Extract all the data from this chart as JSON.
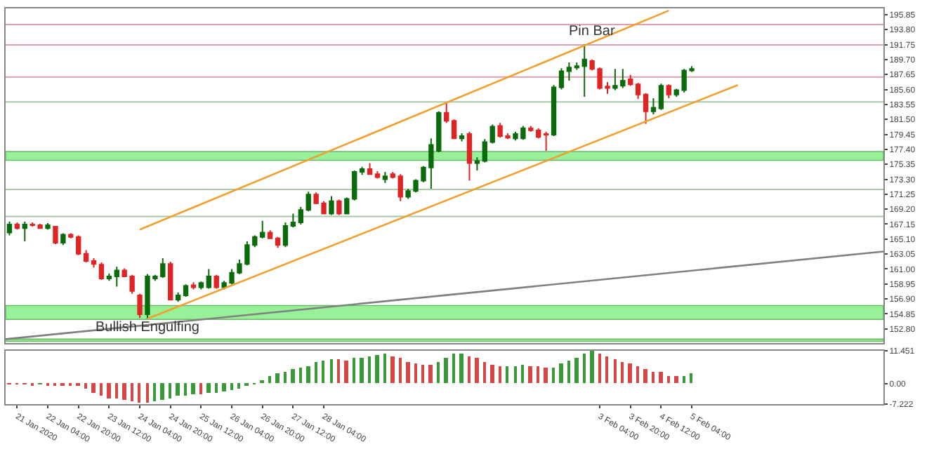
{
  "chart_data": [
    {
      "type": "candlestick",
      "x": [
        "2020-01-21T08:00",
        "2020-01-21T12:00",
        "2020-01-21T16:00",
        "2020-01-21T20:00",
        "2020-01-22T00:00",
        "2020-01-22T04:00",
        "2020-01-22T08:00",
        "2020-01-22T12:00",
        "2020-01-22T16:00",
        "2020-01-22T20:00",
        "2020-01-23T00:00",
        "2020-01-23T04:00",
        "2020-01-23T08:00",
        "2020-01-23T12:00",
        "2020-01-23T16:00",
        "2020-01-23T20:00",
        "2020-01-24T00:00",
        "2020-01-24T04:00",
        "2020-01-24T08:00",
        "2020-01-24T12:00",
        "2020-01-24T16:00",
        "2020-01-24T20:00",
        "2020-01-25T00:00",
        "2020-01-25T04:00",
        "2020-01-25T08:00",
        "2020-01-25T12:00",
        "2020-01-25T16:00",
        "2020-01-25T20:00",
        "2020-01-26T00:00",
        "2020-01-26T04:00",
        "2020-01-26T08:00",
        "2020-01-26T12:00",
        "2020-01-26T16:00",
        "2020-01-26T20:00",
        "2020-01-27T00:00",
        "2020-01-27T04:00",
        "2020-01-27T08:00",
        "2020-01-27T12:00",
        "2020-01-27T16:00",
        "2020-01-27T20:00",
        "2020-01-28T00:00",
        "2020-01-28T04:00",
        "2020-01-28T08:00",
        "2020-01-28T12:00",
        "2020-01-28T16:00",
        "2020-01-28T20:00",
        "2020-01-29T00:00",
        "2020-01-29T04:00",
        "2020-01-29T08:00",
        "2020-01-29T12:00",
        "2020-01-29T16:00",
        "2020-01-29T20:00",
        "2020-01-30T00:00",
        "2020-01-30T04:00",
        "2020-01-30T08:00",
        "2020-01-30T12:00",
        "2020-01-30T16:00",
        "2020-01-30T20:00",
        "2020-01-31T00:00",
        "2020-01-31T04:00",
        "2020-01-31T08:00",
        "2020-01-31T12:00",
        "2020-01-31T16:00",
        "2020-01-31T20:00",
        "2020-02-01T00:00",
        "2020-02-01T04:00",
        "2020-02-01T08:00",
        "2020-02-01T12:00",
        "2020-02-01T16:00",
        "2020-02-01T20:00",
        "2020-02-02T00:00",
        "2020-02-02T04:00",
        "2020-02-02T08:00",
        "2020-02-02T12:00",
        "2020-02-02T16:00",
        "2020-02-02T20:00",
        "2020-02-03T00:00",
        "2020-02-03T04:00",
        "2020-02-03T08:00",
        "2020-02-03T12:00",
        "2020-02-03T16:00",
        "2020-02-03T20:00",
        "2020-02-04T00:00",
        "2020-02-04T04:00",
        "2020-02-04T08:00",
        "2020-02-04T12:00",
        "2020-02-04T16:00",
        "2020-02-04T20:00",
        "2020-02-05T00:00",
        "2020-02-05T04:00"
      ],
      "ohlc": [
        [
          166.0,
          167.5,
          165.6,
          167.1
        ],
        [
          167.1,
          167.4,
          166.4,
          166.6
        ],
        [
          166.6,
          167.5,
          164.8,
          167.1
        ],
        [
          167.1,
          167.4,
          166.8,
          167.0
        ],
        [
          167.0,
          167.2,
          166.5,
          166.6
        ],
        [
          166.6,
          167.3,
          166.4,
          167.0
        ],
        [
          166.8,
          166.9,
          164.4,
          164.6
        ],
        [
          164.6,
          165.9,
          164.3,
          165.7
        ],
        [
          165.7,
          165.9,
          165.2,
          165.4
        ],
        [
          165.4,
          165.6,
          162.9,
          163.1
        ],
        [
          163.1,
          163.6,
          161.9,
          162.1
        ],
        [
          162.1,
          162.5,
          161.2,
          161.7
        ],
        [
          161.6,
          161.9,
          159.5,
          159.7
        ],
        [
          159.7,
          160.4,
          159.4,
          160.0
        ],
        [
          160.0,
          161.3,
          158.6,
          160.8
        ],
        [
          160.8,
          161.1,
          159.9,
          160.0
        ],
        [
          160.0,
          160.2,
          157.6,
          158.0
        ],
        [
          157.4,
          157.6,
          154.3,
          154.8
        ],
        [
          154.8,
          160.3,
          154.2,
          160.0
        ],
        [
          159.7,
          160.2,
          159.4,
          160.0
        ],
        [
          160.0,
          162.5,
          159.8,
          161.7
        ],
        [
          161.7,
          162.0,
          156.7,
          156.8
        ],
        [
          156.8,
          157.8,
          156.5,
          157.4
        ],
        [
          157.4,
          158.9,
          157.2,
          158.7
        ],
        [
          158.8,
          159.2,
          158.2,
          158.5
        ],
        [
          158.5,
          159.3,
          158.2,
          159.1
        ],
        [
          158.5,
          161.0,
          158.3,
          160.0
        ],
        [
          160.0,
          160.2,
          158.3,
          158.5
        ],
        [
          158.5,
          159.4,
          158.2,
          159.1
        ],
        [
          159.1,
          161.0,
          158.9,
          160.5
        ],
        [
          160.5,
          162.3,
          160.3,
          161.7
        ],
        [
          161.7,
          164.8,
          161.5,
          164.3
        ],
        [
          164.3,
          165.6,
          164.0,
          165.4
        ],
        [
          165.4,
          167.6,
          165.2,
          166.0
        ],
        [
          166.0,
          166.3,
          165.1,
          165.2
        ],
        [
          165.2,
          165.4,
          163.9,
          164.3
        ],
        [
          164.3,
          167.4,
          164.0,
          166.9
        ],
        [
          166.9,
          168.6,
          166.7,
          167.4
        ],
        [
          167.4,
          169.5,
          167.1,
          169.1
        ],
        [
          169.1,
          171.6,
          168.9,
          171.2
        ],
        [
          171.2,
          171.5,
          169.9,
          170.0
        ],
        [
          170.0,
          170.3,
          168.5,
          168.6
        ],
        [
          168.6,
          171.0,
          168.4,
          170.3
        ],
        [
          170.3,
          170.5,
          168.4,
          168.6
        ],
        [
          168.6,
          170.8,
          168.5,
          170.6
        ],
        [
          170.6,
          174.5,
          170.4,
          174.3
        ],
        [
          174.3,
          175.0,
          173.9,
          174.7
        ],
        [
          174.7,
          175.5,
          173.9,
          174.0
        ],
        [
          174.0,
          174.4,
          173.4,
          173.6
        ],
        [
          173.3,
          174.3,
          172.8,
          173.7
        ],
        [
          174.0,
          174.3,
          173.4,
          173.6
        ],
        [
          173.7,
          174.0,
          170.3,
          170.9
        ],
        [
          170.9,
          172.0,
          170.6,
          171.7
        ],
        [
          171.7,
          173.3,
          171.5,
          173.1
        ],
        [
          173.1,
          175.1,
          172.9,
          174.9
        ],
        [
          174.9,
          178.9,
          172.0,
          178.0
        ],
        [
          177.2,
          182.6,
          177.0,
          182.4
        ],
        [
          182.4,
          183.8,
          181.0,
          181.3
        ],
        [
          181.3,
          181.5,
          178.8,
          178.9
        ],
        [
          178.9,
          179.6,
          178.5,
          179.2
        ],
        [
          179.5,
          179.8,
          173.1,
          175.5
        ],
        [
          175.5,
          176.3,
          174.5,
          175.8
        ],
        [
          175.8,
          178.8,
          175.6,
          178.4
        ],
        [
          178.4,
          180.8,
          178.2,
          180.5
        ],
        [
          180.6,
          181.0,
          179.0,
          179.2
        ],
        [
          179.2,
          179.6,
          178.8,
          179.0
        ],
        [
          178.9,
          179.8,
          178.6,
          179.5
        ],
        [
          178.9,
          180.6,
          178.7,
          180.3
        ],
        [
          180.3,
          180.6,
          179.8,
          180.0
        ],
        [
          180.0,
          180.3,
          178.9,
          179.1
        ],
        [
          179.5,
          179.8,
          177.2,
          179.4
        ],
        [
          179.4,
          186.2,
          179.2,
          185.9
        ],
        [
          185.9,
          188.5,
          185.6,
          188.1
        ],
        [
          188.1,
          189.3,
          186.8,
          188.6
        ],
        [
          188.6,
          189.3,
          188.3,
          188.8
        ],
        [
          188.8,
          191.8,
          184.6,
          189.7
        ],
        [
          189.5,
          189.7,
          188.2,
          188.4
        ],
        [
          188.4,
          188.6,
          185.6,
          185.8
        ],
        [
          186.0,
          186.6,
          185.0,
          185.8
        ],
        [
          185.8,
          188.4,
          185.5,
          186.1
        ],
        [
          186.1,
          188.4,
          185.8,
          186.8
        ],
        [
          187.0,
          187.6,
          186.1,
          186.3
        ],
        [
          186.3,
          186.5,
          184.3,
          184.9
        ],
        [
          184.9,
          185.1,
          180.9,
          182.6
        ],
        [
          182.6,
          184.4,
          182.2,
          183.1
        ],
        [
          183.0,
          186.4,
          182.8,
          186.1
        ],
        [
          186.1,
          186.3,
          184.4,
          184.9
        ],
        [
          184.9,
          185.7,
          184.6,
          185.5
        ],
        [
          185.5,
          188.4,
          185.2,
          188.2
        ],
        [
          188.2,
          188.8,
          188.0,
          188.4
        ]
      ],
      "colors": [
        "#0b6b0b",
        "#e02424",
        "#0b6b0b",
        "#e02424",
        "#e02424",
        "#0b6b0b",
        "#e02424",
        "#0b6b0b",
        "#e02424",
        "#e02424",
        "#e02424",
        "#e02424",
        "#e02424",
        "#0b6b0b",
        "#0b6b0b",
        "#e02424",
        "#e02424",
        "#e02424",
        "#0b6b0b",
        "#0b6b0b",
        "#0b6b0b",
        "#e02424",
        "#0b6b0b",
        "#0b6b0b",
        "#e02424",
        "#0b6b0b",
        "#0b6b0b",
        "#e02424",
        "#0b6b0b",
        "#0b6b0b",
        "#0b6b0b",
        "#0b6b0b",
        "#0b6b0b",
        "#0b6b0b",
        "#e02424",
        "#e02424",
        "#0b6b0b",
        "#0b6b0b",
        "#0b6b0b",
        "#0b6b0b",
        "#e02424",
        "#e02424",
        "#0b6b0b",
        "#e02424",
        "#0b6b0b",
        "#0b6b0b",
        "#0b6b0b",
        "#e02424",
        "#e02424",
        "#0b6b0b",
        "#e02424",
        "#e02424",
        "#0b6b0b",
        "#0b6b0b",
        "#0b6b0b",
        "#0b6b0b",
        "#0b6b0b",
        "#e02424",
        "#e02424",
        "#0b6b0b",
        "#e02424",
        "#0b6b0b",
        "#0b6b0b",
        "#0b6b0b",
        "#e02424",
        "#e02424",
        "#0b6b0b",
        "#0b6b0b",
        "#e02424",
        "#e02424",
        "#e02424",
        "#0b6b0b",
        "#0b6b0b",
        "#0b6b0b",
        "#0b6b0b",
        "#0b6b0b",
        "#e02424",
        "#e02424",
        "#e02424",
        "#0b6b0b",
        "#0b6b0b",
        "#e02424",
        "#e02424",
        "#e02424",
        "#0b6b0b",
        "#0b6b0b",
        "#e02424",
        "#0b6b0b",
        "#0b6b0b",
        "#0b6b0b"
      ],
      "series": [
        {
          "type": "line",
          "color": "#f0a030",
          "x": [
            "2020-01-24T04:00",
            "2020-02-04T16:00"
          ],
          "values": [
            166.4,
            196.4
          ]
        },
        {
          "type": "line",
          "color": "#f0a030",
          "x": [
            "2020-01-24T08:00",
            "2020-02-06T04:00"
          ],
          "values": [
            154.2,
            186.2
          ]
        },
        {
          "type": "line",
          "color": "#808080",
          "x": [
            "2020-01-21T06:00",
            "2020-02-09T08:00"
          ],
          "values": [
            151.4,
            163.4
          ]
        }
      ],
      "ref_lines": [
        {
          "axis": "y",
          "value": 194.5,
          "color": "#e0a0b0"
        },
        {
          "axis": "y",
          "value": 191.7,
          "color": "#e0a0b0"
        },
        {
          "axis": "y",
          "value": 187.3,
          "color": "#e0a0b0"
        },
        {
          "axis": "y",
          "value": 183.9,
          "color": "#a8c8a8"
        },
        {
          "axis": "y",
          "value": 171.9,
          "color": "#a8c8a8"
        },
        {
          "axis": "y",
          "value": 168.2,
          "color": "#a8c8a8"
        }
      ],
      "bands": [
        {
          "axis": "y",
          "from": 175.9,
          "to": 177.1,
          "color": "#98f098"
        },
        {
          "axis": "y",
          "from": 154.1,
          "to": 156.0,
          "color": "#98f098"
        },
        {
          "axis": "y",
          "from": 151.1,
          "to": 151.4,
          "color": "#98f098"
        }
      ],
      "annotations": [
        {
          "text": "Pin Bar",
          "x": "2020-02-03T00:00",
          "y": 193.6
        },
        {
          "text": "Bullish Engulfing",
          "x": "2020-01-24T08:00",
          "y": 153.0
        }
      ],
      "xlim": [
        "2020-01-21T06:00",
        "2020-02-09T08:00"
      ],
      "ylim": [
        150.9,
        196.7
      ],
      "yticks": [
        {
          "value": 152.8,
          "label": "152.80"
        },
        {
          "value": 154.85,
          "label": "154.85"
        },
        {
          "value": 156.9,
          "label": "156.90"
        },
        {
          "value": 158.95,
          "label": "158.95"
        },
        {
          "value": 161.0,
          "label": "161.00"
        },
        {
          "value": 163.05,
          "label": "163.05"
        },
        {
          "value": 165.1,
          "label": "165.10"
        },
        {
          "value": 167.15,
          "label": "167.15"
        },
        {
          "value": 169.2,
          "label": "169.20"
        },
        {
          "value": 171.25,
          "label": "171.25"
        },
        {
          "value": 173.3,
          "label": "173.30"
        },
        {
          "value": 175.35,
          "label": "175.35"
        },
        {
          "value": 177.4,
          "label": "177.40"
        },
        {
          "value": 179.45,
          "label": "179.45"
        },
        {
          "value": 181.5,
          "label": "181.50"
        },
        {
          "value": 183.55,
          "label": "183.55"
        },
        {
          "value": 185.6,
          "label": "185.60"
        },
        {
          "value": 187.65,
          "label": "187.65"
        },
        {
          "value": 189.7,
          "label": "189.70"
        },
        {
          "value": 191.75,
          "label": "191.75"
        },
        {
          "value": 193.8,
          "label": "193.80"
        },
        {
          "value": 195.85,
          "label": "195.85"
        }
      ],
      "tick_labels": "y"
    },
    {
      "type": "bar",
      "x": [
        "2020-01-21T08:00",
        "2020-01-21T12:00",
        "2020-01-21T16:00",
        "2020-01-21T20:00",
        "2020-01-22T00:00",
        "2020-01-22T04:00",
        "2020-01-22T08:00",
        "2020-01-22T12:00",
        "2020-01-22T16:00",
        "2020-01-22T20:00",
        "2020-01-23T00:00",
        "2020-01-23T04:00",
        "2020-01-23T08:00",
        "2020-01-23T12:00",
        "2020-01-23T16:00",
        "2020-01-23T20:00",
        "2020-01-24T00:00",
        "2020-01-24T04:00",
        "2020-01-24T08:00",
        "2020-01-24T12:00",
        "2020-01-24T16:00",
        "2020-01-24T20:00",
        "2020-01-25T00:00",
        "2020-01-25T04:00",
        "2020-01-25T08:00",
        "2020-01-25T12:00",
        "2020-01-25T16:00",
        "2020-01-25T20:00",
        "2020-01-26T00:00",
        "2020-01-26T04:00",
        "2020-01-26T08:00",
        "2020-01-26T12:00",
        "2020-01-26T16:00",
        "2020-01-26T20:00",
        "2020-01-27T00:00",
        "2020-01-27T04:00",
        "2020-01-27T08:00",
        "2020-01-27T12:00",
        "2020-01-27T16:00",
        "2020-01-27T20:00",
        "2020-01-28T00:00",
        "2020-01-28T04:00",
        "2020-01-28T08:00",
        "2020-01-28T12:00",
        "2020-01-28T16:00",
        "2020-01-28T20:00",
        "2020-01-29T00:00",
        "2020-01-29T04:00",
        "2020-01-29T08:00",
        "2020-01-29T12:00",
        "2020-01-29T16:00",
        "2020-01-29T20:00",
        "2020-01-30T00:00",
        "2020-01-30T04:00",
        "2020-01-30T08:00",
        "2020-01-30T12:00",
        "2020-01-30T16:00",
        "2020-01-30T20:00",
        "2020-01-31T00:00",
        "2020-01-31T04:00",
        "2020-01-31T08:00",
        "2020-01-31T12:00",
        "2020-01-31T16:00",
        "2020-01-31T20:00",
        "2020-02-01T00:00",
        "2020-02-01T04:00",
        "2020-02-01T08:00",
        "2020-02-01T12:00",
        "2020-02-01T16:00",
        "2020-02-01T20:00",
        "2020-02-02T00:00",
        "2020-02-02T04:00",
        "2020-02-02T08:00",
        "2020-02-02T12:00",
        "2020-02-02T16:00",
        "2020-02-02T20:00",
        "2020-02-03T00:00",
        "2020-02-03T04:00",
        "2020-02-03T08:00",
        "2020-02-03T12:00",
        "2020-02-03T16:00",
        "2020-02-03T20:00",
        "2020-02-04T00:00",
        "2020-02-04T04:00",
        "2020-02-04T08:00",
        "2020-02-04T12:00",
        "2020-02-04T16:00",
        "2020-02-04T20:00",
        "2020-02-05T00:00",
        "2020-02-05T04:00"
      ],
      "values": [
        -0.2,
        -0.3,
        -0.3,
        -0.4,
        -0.3,
        -0.4,
        -0.5,
        -0.5,
        -0.6,
        -0.8,
        -1.9,
        -3.2,
        -4.2,
        -5.0,
        -5.3,
        -5.7,
        -6.2,
        -6.5,
        -6.8,
        -6.2,
        -5.7,
        -5.0,
        -4.4,
        -4.2,
        -3.8,
        -3.9,
        -3.5,
        -3.2,
        -2.7,
        -2.3,
        -1.7,
        -0.5,
        0.1,
        1.3,
        2.5,
        3.7,
        4.3,
        5.1,
        5.5,
        6.2,
        7.3,
        8.0,
        8.5,
        8.4,
        8.2,
        8.8,
        9.2,
        9.7,
        10.0,
        10.4,
        9.7,
        9.2,
        7.7,
        7.0,
        6.5,
        6.4,
        7.7,
        9.2,
        10.3,
        10.4,
        9.7,
        8.8,
        7.3,
        6.5,
        6.2,
        6.3,
        6.3,
        6.4,
        6.2,
        5.9,
        5.5,
        5.8,
        7.0,
        8.2,
        9.2,
        10.7,
        11.4,
        10.3,
        9.5,
        8.5,
        7.3,
        7.0,
        6.2,
        5.2,
        4.3,
        4.0,
        2.8,
        2.5,
        2.6,
        3.6
      ],
      "colors": [
        "#d44848",
        "#d44848",
        "#d44848",
        "#d44848",
        "#3a9a3a",
        "#d44848",
        "#d44848",
        "#d44848",
        "#d44848",
        "#d44848",
        "#d44848",
        "#d44848",
        "#d44848",
        "#d44848",
        "#d44848",
        "#d44848",
        "#d44848",
        "#d44848",
        "#d44848",
        "#3a9a3a",
        "#3a9a3a",
        "#3a9a3a",
        "#3a9a3a",
        "#3a9a3a",
        "#3a9a3a",
        "#d44848",
        "#3a9a3a",
        "#3a9a3a",
        "#3a9a3a",
        "#3a9a3a",
        "#3a9a3a",
        "#3a9a3a",
        "#3a9a3a",
        "#3a9a3a",
        "#3a9a3a",
        "#3a9a3a",
        "#3a9a3a",
        "#3a9a3a",
        "#3a9a3a",
        "#3a9a3a",
        "#3a9a3a",
        "#3a9a3a",
        "#3a9a3a",
        "#d44848",
        "#d44848",
        "#3a9a3a",
        "#3a9a3a",
        "#3a9a3a",
        "#3a9a3a",
        "#3a9a3a",
        "#d44848",
        "#d44848",
        "#d44848",
        "#d44848",
        "#d44848",
        "#d44848",
        "#3a9a3a",
        "#3a9a3a",
        "#3a9a3a",
        "#3a9a3a",
        "#d44848",
        "#d44848",
        "#d44848",
        "#d44848",
        "#d44848",
        "#3a9a3a",
        "#3a9a3a",
        "#3a9a3a",
        "#d44848",
        "#d44848",
        "#d44848",
        "#3a9a3a",
        "#3a9a3a",
        "#3a9a3a",
        "#3a9a3a",
        "#3a9a3a",
        "#3a9a3a",
        "#d44848",
        "#d44848",
        "#d44848",
        "#d44848",
        "#d44848",
        "#d44848",
        "#d44848",
        "#d44848",
        "#d44848",
        "#d44848",
        "#d44848",
        "#3a9a3a",
        "#3a9a3a"
      ],
      "xlim": [
        "2020-01-21T06:00",
        "2020-02-09T08:00"
      ],
      "xticks": [
        {
          "value": "2020-01-21T12:00",
          "label": "21 Jan 2020"
        },
        {
          "value": "2020-01-22T04:00",
          "label": "22 Jan 04:00"
        },
        {
          "value": "2020-01-22T20:00",
          "label": "22 Jan 20:00"
        },
        {
          "value": "2020-01-23T12:00",
          "label": "23 Jan 12:00"
        },
        {
          "value": "2020-01-24T04:00",
          "label": "24 Jan 04:00"
        },
        {
          "value": "2020-01-24T20:00",
          "label": "24 Jan 20:00"
        },
        {
          "value": "2020-01-25T12:00",
          "label": "25 Jan 12:00"
        },
        {
          "value": "2020-01-26T04:00",
          "label": "26 Jan 04:00"
        },
        {
          "value": "2020-01-26T20:00",
          "label": "26 Jan 20:00"
        },
        {
          "value": "2020-01-27T12:00",
          "label": "27 Jan 12:00"
        },
        {
          "value": "2020-01-28T04:00",
          "label": "28 Jan 04:00"
        },
        {
          "value": "2020-02-03T04:00",
          "label": "3 Feb 04:00"
        },
        {
          "value": "2020-02-03T20:00",
          "label": "3 Feb 20:00"
        },
        {
          "value": "2020-02-04T12:00",
          "label": "4 Feb 12:00"
        },
        {
          "value": "2020-02-05T04:00",
          "label": "5 Feb 04:00"
        }
      ],
      "ylim": [
        -7.222,
        11.451
      ],
      "yticks": [
        {
          "value": 11.451,
          "label": "11.451"
        },
        {
          "value": 0,
          "label": "0.00"
        },
        {
          "value": -7.222,
          "label": "-7.222"
        }
      ]
    }
  ]
}
